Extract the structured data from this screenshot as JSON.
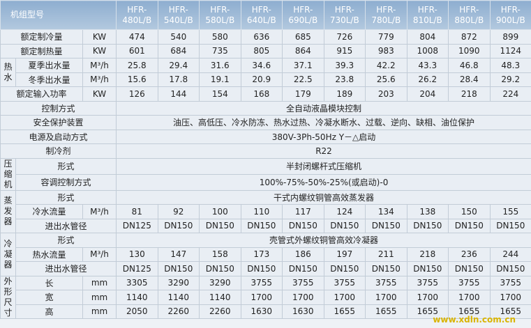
{
  "header": {
    "label": "机组型号",
    "models": [
      {
        "prefix": "HFR-",
        "model": "480L/B"
      },
      {
        "prefix": "HFR-",
        "model": "540L/B"
      },
      {
        "prefix": "HFR-",
        "model": "580L/B"
      },
      {
        "prefix": "HFR-",
        "model": "640L/B"
      },
      {
        "prefix": "HFR-",
        "model": "690L/B"
      },
      {
        "prefix": "HFR-",
        "model": "730L/B"
      },
      {
        "prefix": "HFR-",
        "model": "780L/B"
      },
      {
        "prefix": "HFR-",
        "model": "810L/B"
      },
      {
        "prefix": "HFR-",
        "model": "880L/B"
      },
      {
        "prefix": "HFR-",
        "model": "900L/B"
      }
    ]
  },
  "rows": [
    {
      "name": "额定制冷量",
      "unit": "KW",
      "values": [
        474,
        540,
        580,
        636,
        685,
        726,
        779,
        804,
        872,
        899
      ]
    },
    {
      "name": "额定制热量",
      "unit": "KW",
      "values": [
        601,
        684,
        735,
        805,
        864,
        915,
        983,
        1008,
        1090,
        1124
      ]
    },
    {
      "group": "热水",
      "rows": [
        {
          "name": "夏季出水量",
          "unit": "M³/h",
          "values": [
            25.8,
            29.4,
            31.6,
            34.6,
            37.1,
            39.3,
            42.2,
            43.3,
            46.8,
            48.3
          ]
        },
        {
          "name": "冬季出水量",
          "unit": "M³/h",
          "values": [
            15.6,
            17.8,
            19.1,
            20.9,
            22.5,
            23.8,
            25.6,
            26.2,
            28.4,
            29.2
          ]
        }
      ]
    },
    {
      "name": "额定输入功率",
      "unit": "KW",
      "values": [
        126,
        144,
        154,
        168,
        179,
        189,
        203,
        204,
        218,
        224
      ]
    },
    {
      "name": "控制方式",
      "text": "全自动液晶模块控制"
    },
    {
      "name": "安全保护装置",
      "text": "油压、高低压、冷水防冻、热水过热、冷凝水断水、过载、逆向、缺相、油位保护"
    },
    {
      "name": "电源及启动方式",
      "text": "380V-3Ph-50Hz  Y－△启动"
    },
    {
      "name": "制冷剂",
      "text": "R22"
    },
    {
      "group": "压缩机",
      "rows": [
        {
          "name": "形式",
          "text": "半封闭螺杆式压缩机"
        },
        {
          "name": "容调控制方式",
          "text": "100%-75%-50%-25%(或启动)-0"
        }
      ]
    },
    {
      "group": "蒸发器",
      "rows": [
        {
          "name": "形式",
          "text": "干式内螺纹铜管高效蒸发器"
        },
        {
          "name": "冷水流量",
          "unit": "M³/h",
          "values": [
            81,
            92,
            100,
            110,
            117,
            124,
            134,
            138,
            150,
            155
          ]
        },
        {
          "name": "进出水管径",
          "values": [
            "DN125",
            "DN150",
            "DN150",
            "DN150",
            "DN150",
            "DN150",
            "DN150",
            "DN150",
            "DN150",
            "DN150"
          ]
        }
      ]
    },
    {
      "group": "冷凝器",
      "rows": [
        {
          "name": "形式",
          "text": "壳管式外螺纹铜管高效冷凝器"
        },
        {
          "name": "热水流量",
          "unit": "M³/h",
          "values": [
            130,
            147,
            158,
            173,
            186,
            197,
            211,
            218,
            236,
            244
          ]
        },
        {
          "name": "进出水管径",
          "values": [
            "DN125",
            "DN150",
            "DN150",
            "DN150",
            "DN150",
            "DN150",
            "DN150",
            "DN150",
            "DN150",
            "DN150"
          ]
        }
      ]
    },
    {
      "group": "外形尺寸",
      "rows": [
        {
          "name": "长",
          "unit": "mm",
          "values": [
            3305,
            3290,
            3290,
            3755,
            3755,
            3755,
            3755,
            3755,
            3755,
            3755
          ]
        },
        {
          "name": "宽",
          "unit": "mm",
          "values": [
            1140,
            1140,
            1140,
            1700,
            1700,
            1700,
            1700,
            1700,
            1700,
            1700
          ]
        },
        {
          "name": "高",
          "unit": "mm",
          "values": [
            2050,
            2260,
            2260,
            1630,
            1630,
            1655,
            1655,
            1655,
            1655,
            1655
          ]
        }
      ]
    }
  ],
  "watermark": "www.xdln.com.cn"
}
